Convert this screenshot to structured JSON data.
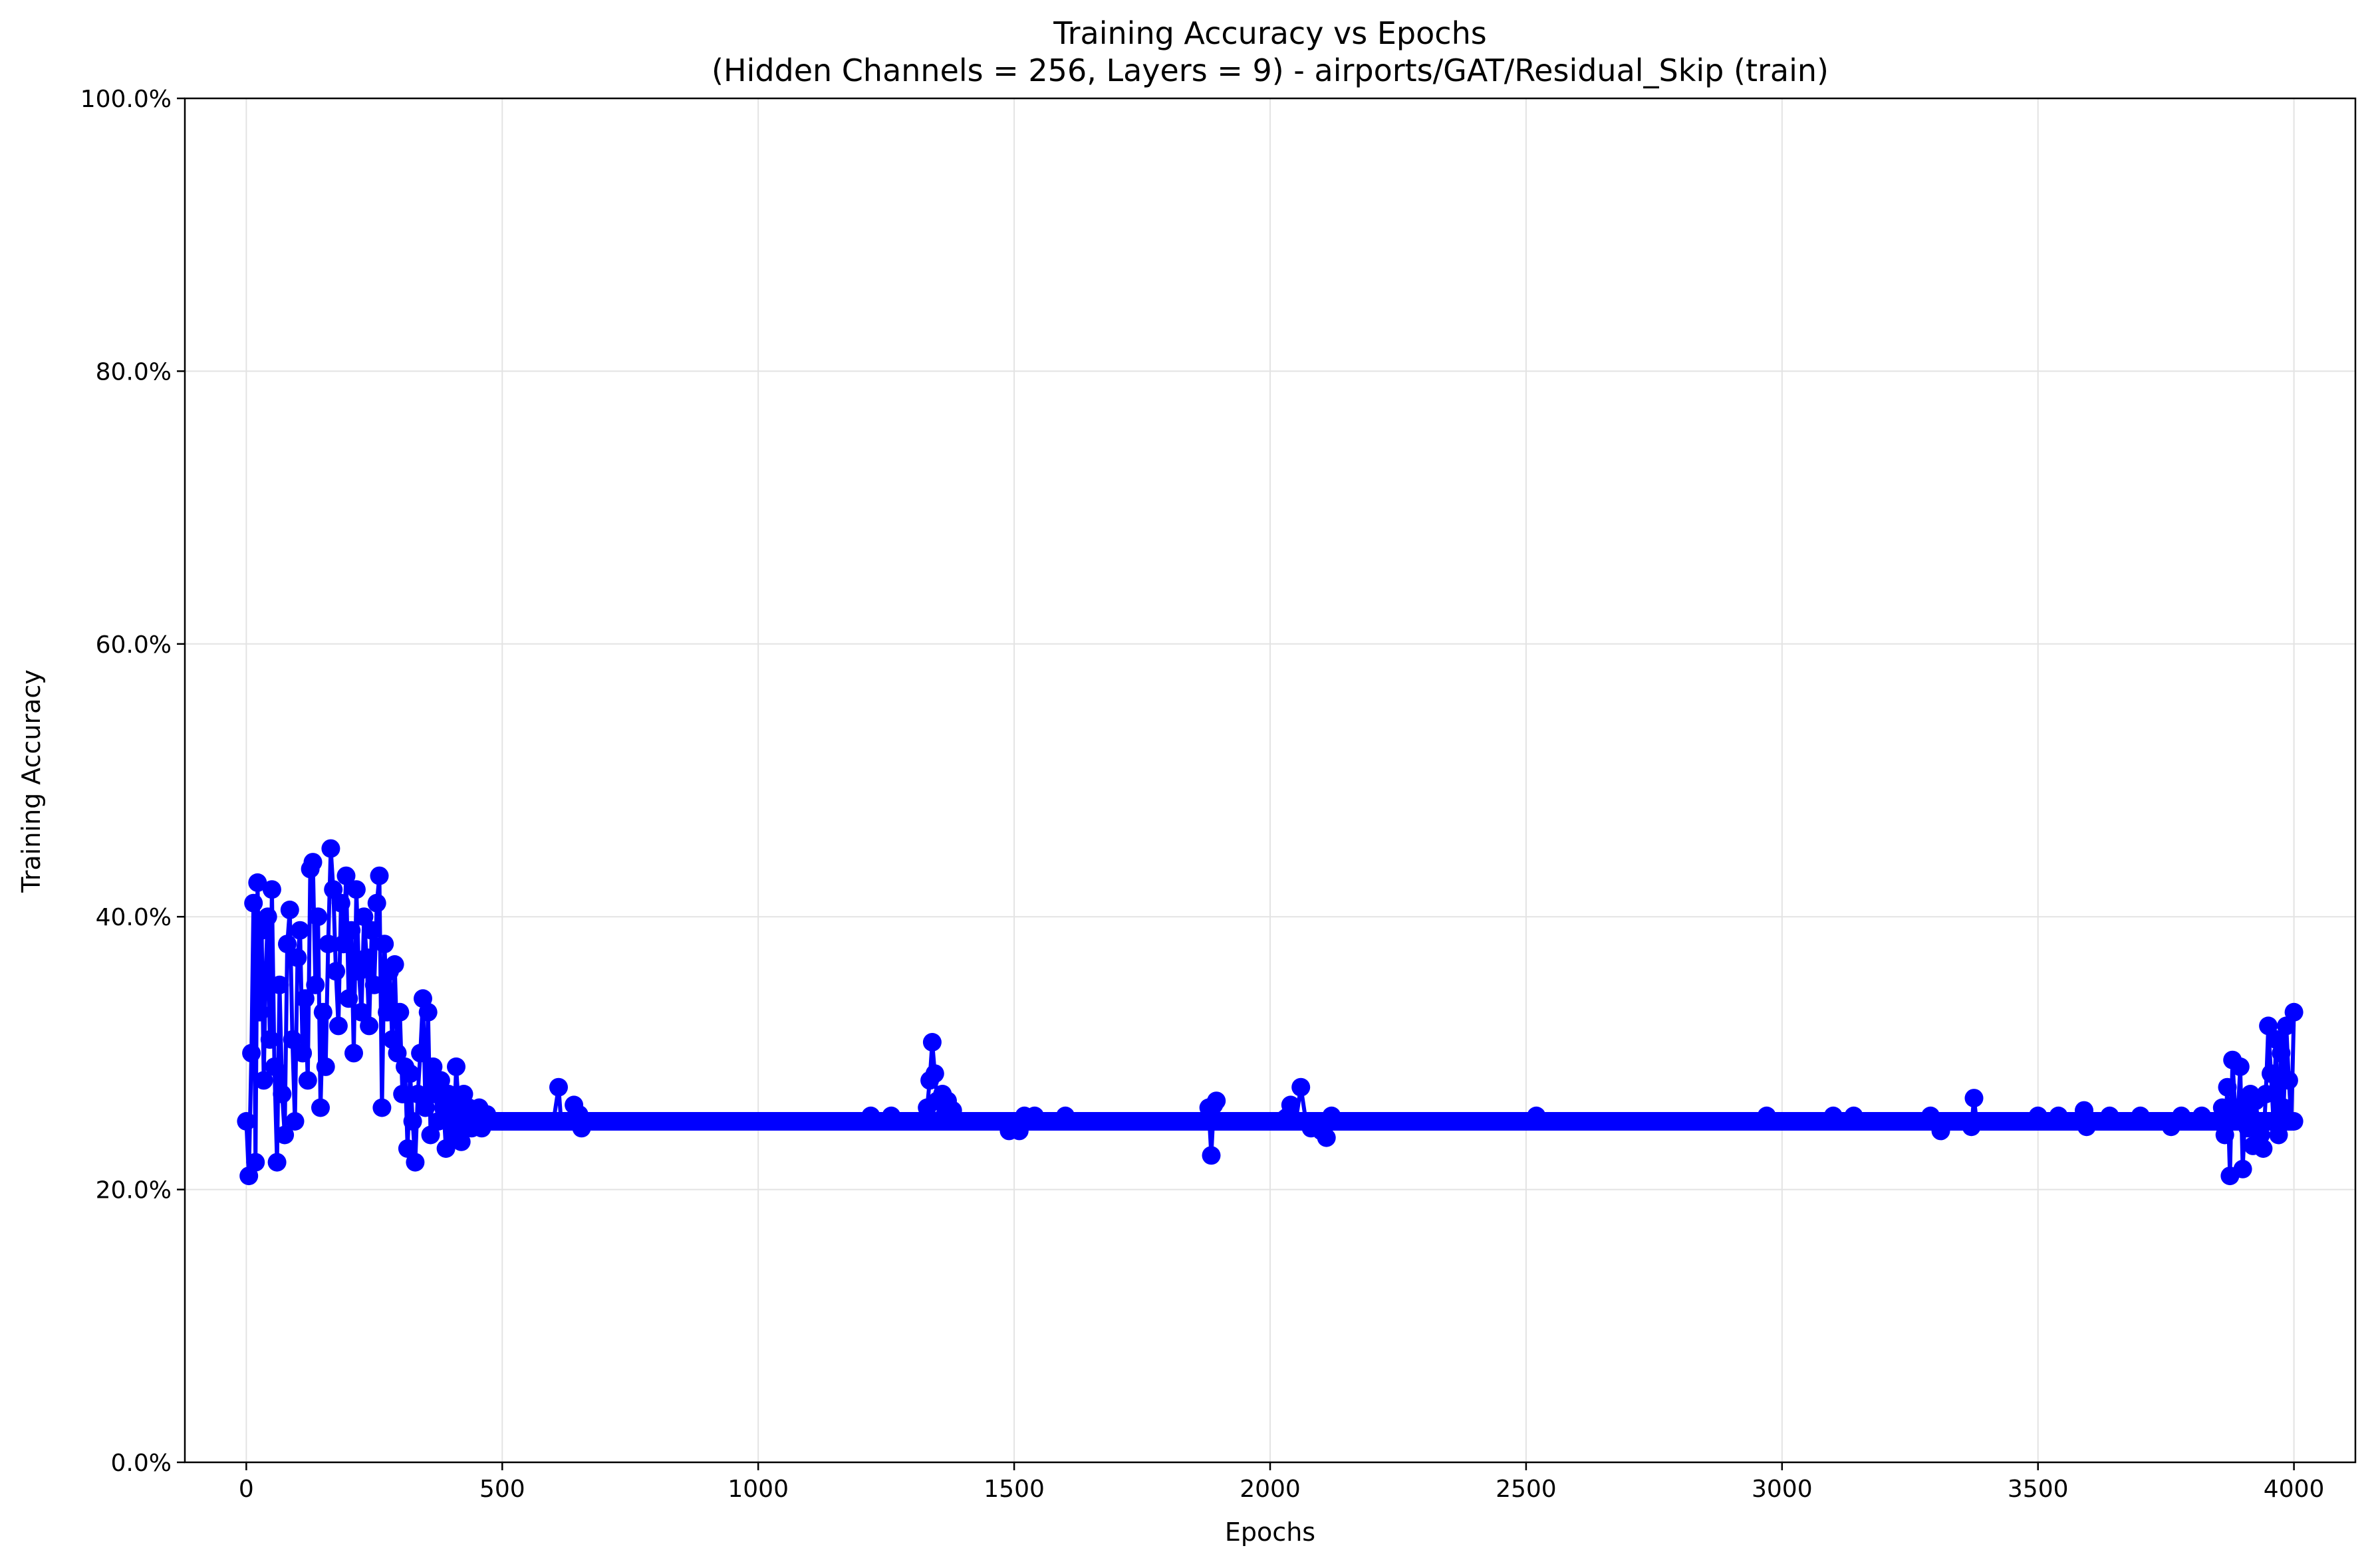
{
  "chart_data": {
    "type": "line",
    "title": "Training Accuracy vs Epochs",
    "subtitle": "(Hidden Channels = 256, Layers = 9) - airports/GAT/Residual_Skip (train)",
    "xlabel": "Epochs",
    "ylabel": "Training Accuracy",
    "xlim": [
      -120,
      4120
    ],
    "ylim": [
      0,
      1
    ],
    "xticks": [
      0,
      500,
      1000,
      1500,
      2000,
      2500,
      3000,
      3500,
      4000
    ],
    "xtick_labels": [
      "0",
      "500",
      "1000",
      "1500",
      "2000",
      "2500",
      "3000",
      "3500",
      "4000"
    ],
    "yticks": [
      0,
      0.2,
      0.4,
      0.6,
      0.8,
      1.0
    ],
    "ytick_labels": [
      "0.0%",
      "20.0%",
      "40.0%",
      "60.0%",
      "80.0%",
      "100.0%"
    ],
    "grid": true,
    "marker": "circle",
    "line_color": "#0000ff",
    "series": [
      {
        "values": [
          [
            0,
            0.25
          ],
          [
            5,
            0.21
          ],
          [
            10,
            0.3
          ],
          [
            14,
            0.41
          ],
          [
            18,
            0.22
          ],
          [
            22,
            0.425
          ],
          [
            26,
            0.33
          ],
          [
            30,
            0.39
          ],
          [
            34,
            0.28
          ],
          [
            38,
            0.36
          ],
          [
            42,
            0.4
          ],
          [
            46,
            0.31
          ],
          [
            50,
            0.42
          ],
          [
            55,
            0.29
          ],
          [
            60,
            0.22
          ],
          [
            65,
            0.35
          ],
          [
            70,
            0.27
          ],
          [
            75,
            0.24
          ],
          [
            80,
            0.38
          ],
          [
            85,
            0.405
          ],
          [
            90,
            0.31
          ],
          [
            95,
            0.25
          ],
          [
            100,
            0.37
          ],
          [
            105,
            0.39
          ],
          [
            110,
            0.3
          ],
          [
            115,
            0.34
          ],
          [
            120,
            0.28
          ],
          [
            125,
            0.435
          ],
          [
            130,
            0.44
          ],
          [
            135,
            0.35
          ],
          [
            140,
            0.4
          ],
          [
            145,
            0.26
          ],
          [
            150,
            0.33
          ],
          [
            155,
            0.29
          ],
          [
            160,
            0.38
          ],
          [
            165,
            0.45
          ],
          [
            170,
            0.42
          ],
          [
            175,
            0.36
          ],
          [
            180,
            0.32
          ],
          [
            185,
            0.41
          ],
          [
            190,
            0.38
          ],
          [
            195,
            0.43
          ],
          [
            200,
            0.34
          ],
          [
            205,
            0.39
          ],
          [
            210,
            0.3
          ],
          [
            215,
            0.42
          ],
          [
            220,
            0.36
          ],
          [
            225,
            0.33
          ],
          [
            230,
            0.4
          ],
          [
            235,
            0.37
          ],
          [
            240,
            0.32
          ],
          [
            245,
            0.39
          ],
          [
            250,
            0.35
          ],
          [
            255,
            0.41
          ],
          [
            260,
            0.43
          ],
          [
            265,
            0.26
          ],
          [
            270,
            0.38
          ],
          [
            275,
            0.33
          ],
          [
            280,
            0.36
          ],
          [
            285,
            0.31
          ],
          [
            290,
            0.365
          ],
          [
            295,
            0.3
          ],
          [
            300,
            0.33
          ],
          [
            305,
            0.27
          ],
          [
            310,
            0.29
          ],
          [
            315,
            0.23
          ],
          [
            320,
            0.285
          ],
          [
            325,
            0.25
          ],
          [
            330,
            0.22
          ],
          [
            335,
            0.27
          ],
          [
            340,
            0.3
          ],
          [
            345,
            0.34
          ],
          [
            350,
            0.26
          ],
          [
            355,
            0.33
          ],
          [
            360,
            0.24
          ],
          [
            365,
            0.29
          ],
          [
            370,
            0.27
          ],
          [
            375,
            0.25
          ],
          [
            380,
            0.28
          ],
          [
            385,
            0.26
          ],
          [
            390,
            0.23
          ],
          [
            395,
            0.27
          ],
          [
            400,
            0.25
          ],
          [
            405,
            0.24
          ],
          [
            410,
            0.29
          ],
          [
            415,
            0.26
          ],
          [
            420,
            0.235
          ],
          [
            425,
            0.27
          ],
          [
            430,
            0.25
          ],
          [
            435,
            0.26
          ],
          [
            440,
            0.245
          ],
          [
            445,
            0.255
          ],
          [
            450,
            0.25
          ],
          [
            455,
            0.26
          ],
          [
            460,
            0.245
          ],
          [
            465,
            0.25
          ],
          [
            470,
            0.255
          ],
          [
            480,
            0.25
          ],
          [
            500,
            0.25
          ],
          [
            550,
            0.25
          ],
          [
            600,
            0.25
          ],
          [
            610,
            0.275
          ],
          [
            615,
            0.25
          ],
          [
            630,
            0.25
          ],
          [
            640,
            0.262
          ],
          [
            645,
            0.25
          ],
          [
            650,
            0.255
          ],
          [
            655,
            0.245
          ],
          [
            660,
            0.25
          ],
          [
            700,
            0.25
          ],
          [
            800,
            0.25
          ],
          [
            900,
            0.25
          ],
          [
            1000,
            0.25
          ],
          [
            1100,
            0.25
          ],
          [
            1200,
            0.25
          ],
          [
            1220,
            0.254
          ],
          [
            1240,
            0.25
          ],
          [
            1260,
            0.254
          ],
          [
            1280,
            0.25
          ],
          [
            1300,
            0.25
          ],
          [
            1320,
            0.25
          ],
          [
            1330,
            0.26
          ],
          [
            1335,
            0.28
          ],
          [
            1340,
            0.308
          ],
          [
            1345,
            0.285
          ],
          [
            1350,
            0.265
          ],
          [
            1355,
            0.25
          ],
          [
            1360,
            0.27
          ],
          [
            1365,
            0.255
          ],
          [
            1370,
            0.265
          ],
          [
            1375,
            0.25
          ],
          [
            1380,
            0.258
          ],
          [
            1390,
            0.25
          ],
          [
            1400,
            0.25
          ],
          [
            1450,
            0.25
          ],
          [
            1490,
            0.243
          ],
          [
            1500,
            0.25
          ],
          [
            1510,
            0.243
          ],
          [
            1520,
            0.254
          ],
          [
            1530,
            0.25
          ],
          [
            1540,
            0.254
          ],
          [
            1550,
            0.25
          ],
          [
            1600,
            0.254
          ],
          [
            1620,
            0.25
          ],
          [
            1650,
            0.25
          ],
          [
            1700,
            0.25
          ],
          [
            1800,
            0.25
          ],
          [
            1870,
            0.25
          ],
          [
            1880,
            0.26
          ],
          [
            1885,
            0.225
          ],
          [
            1890,
            0.262
          ],
          [
            1895,
            0.265
          ],
          [
            1900,
            0.25
          ],
          [
            1950,
            0.25
          ],
          [
            2000,
            0.25
          ],
          [
            2040,
            0.262
          ],
          [
            2050,
            0.25
          ],
          [
            2060,
            0.275
          ],
          [
            2070,
            0.25
          ],
          [
            2080,
            0.245
          ],
          [
            2090,
            0.25
          ],
          [
            2100,
            0.243
          ],
          [
            2110,
            0.238
          ],
          [
            2120,
            0.254
          ],
          [
            2130,
            0.25
          ],
          [
            2200,
            0.25
          ],
          [
            2300,
            0.25
          ],
          [
            2400,
            0.25
          ],
          [
            2500,
            0.25
          ],
          [
            2520,
            0.254
          ],
          [
            2540,
            0.25
          ],
          [
            2600,
            0.25
          ],
          [
            2700,
            0.25
          ],
          [
            2800,
            0.25
          ],
          [
            2900,
            0.25
          ],
          [
            2970,
            0.254
          ],
          [
            3000,
            0.25
          ],
          [
            3100,
            0.254
          ],
          [
            3140,
            0.254
          ],
          [
            3200,
            0.25
          ],
          [
            3290,
            0.254
          ],
          [
            3300,
            0.25
          ],
          [
            3310,
            0.243
          ],
          [
            3320,
            0.25
          ],
          [
            3370,
            0.246
          ],
          [
            3375,
            0.267
          ],
          [
            3380,
            0.25
          ],
          [
            3400,
            0.25
          ],
          [
            3500,
            0.254
          ],
          [
            3540,
            0.254
          ],
          [
            3580,
            0.25
          ],
          [
            3590,
            0.258
          ],
          [
            3595,
            0.246
          ],
          [
            3600,
            0.25
          ],
          [
            3640,
            0.254
          ],
          [
            3680,
            0.25
          ],
          [
            3700,
            0.254
          ],
          [
            3740,
            0.25
          ],
          [
            3760,
            0.246
          ],
          [
            3780,
            0.254
          ],
          [
            3800,
            0.25
          ],
          [
            3820,
            0.254
          ],
          [
            3840,
            0.25
          ],
          [
            3855,
            0.25
          ],
          [
            3860,
            0.26
          ],
          [
            3865,
            0.24
          ],
          [
            3870,
            0.275
          ],
          [
            3875,
            0.21
          ],
          [
            3880,
            0.295
          ],
          [
            3885,
            0.26
          ],
          [
            3890,
            0.25
          ],
          [
            3895,
            0.29
          ],
          [
            3900,
            0.215
          ],
          [
            3905,
            0.26
          ],
          [
            3910,
            0.245
          ],
          [
            3915,
            0.27
          ],
          [
            3920,
            0.232
          ],
          [
            3925,
            0.265
          ],
          [
            3930,
            0.25
          ],
          [
            3935,
            0.24
          ],
          [
            3940,
            0.23
          ],
          [
            3945,
            0.27
          ],
          [
            3950,
            0.32
          ],
          [
            3955,
            0.285
          ],
          [
            3960,
            0.25
          ],
          [
            3965,
            0.31
          ],
          [
            3970,
            0.24
          ],
          [
            3975,
            0.3
          ],
          [
            3980,
            0.26
          ],
          [
            3985,
            0.32
          ],
          [
            3990,
            0.28
          ],
          [
            3995,
            0.25
          ],
          [
            4000,
            0.33
          ]
        ]
      }
    ]
  }
}
